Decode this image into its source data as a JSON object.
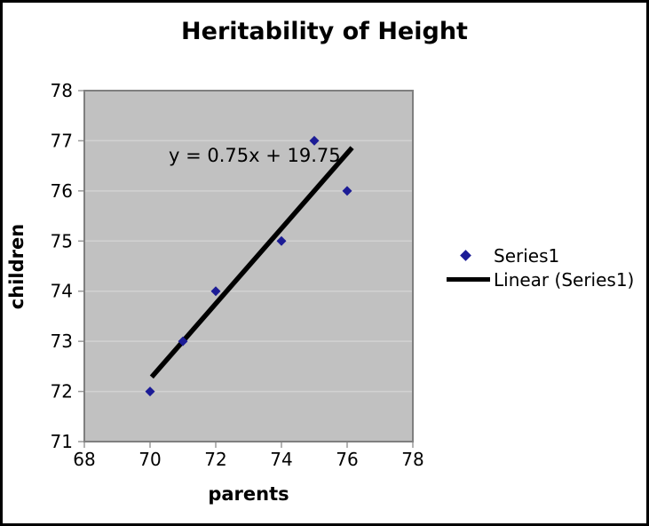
{
  "window": {
    "background": "#ffffff",
    "border_color": "#000000"
  },
  "chart_data": {
    "type": "scatter",
    "title": "Heritability of Height",
    "xlabel": "parents",
    "ylabel": "children",
    "xlim": [
      68,
      78
    ],
    "ylim": [
      71,
      78
    ],
    "x_ticks": [
      68,
      70,
      72,
      74,
      76,
      78
    ],
    "y_ticks": [
      71,
      72,
      73,
      74,
      75,
      76,
      77,
      78
    ],
    "grid": "horizontal-only",
    "legend_position": "right",
    "plot_bg": "#c1c1c1",
    "plot_border_color": "#7f7f7f",
    "gridline_color": "#d2d2d2",
    "tick_color": "#9a9a9a",
    "series": [
      {
        "name": "Series1",
        "marker": "diamond",
        "color": "#1c1c96",
        "points": [
          [
            70,
            72
          ],
          [
            71,
            73
          ],
          [
            72,
            74
          ],
          [
            74,
            75
          ],
          [
            75,
            77
          ],
          [
            76,
            76
          ]
        ]
      }
    ],
    "trendline": {
      "name": "Linear (Series1)",
      "slope": 0.75,
      "intercept": 19.75,
      "equation": "y = 0.75x + 19.75",
      "color": "#000000",
      "x_start": 70.05,
      "x_end": 76.15
    }
  }
}
